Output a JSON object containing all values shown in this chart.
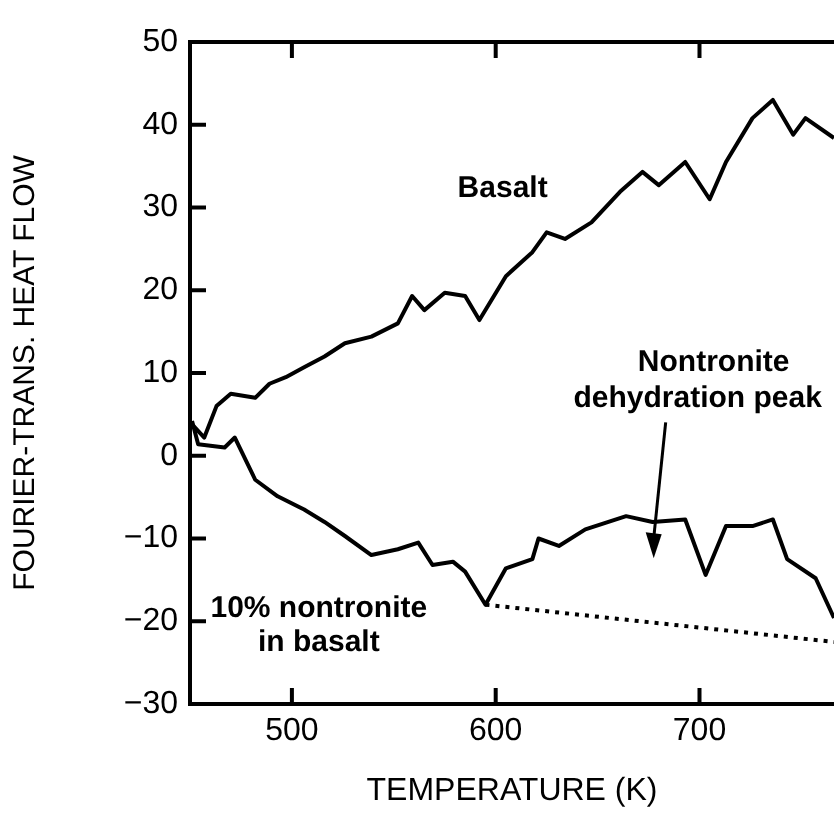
{
  "chart_data": {
    "type": "line",
    "xlabel": "TEMPERATURE (K)",
    "ylabel": "FOURIER-TRANS. HEAT FLOW",
    "xlim": [
      450,
      766
    ],
    "ylim": [
      -30,
      50
    ],
    "xticks": [
      500,
      600,
      700
    ],
    "yticks": [
      -30,
      -20,
      -10,
      0,
      10,
      20,
      30,
      40,
      50
    ],
    "grid": false,
    "legend": false,
    "marker": "none",
    "annotations": [
      "Nontronite dehydration peak"
    ],
    "series": [
      {
        "name": "Basalt",
        "color": "#000000",
        "line_style": "solid",
        "x": [
          451,
          457,
          463,
          470,
          482,
          489,
          497,
          506,
          516,
          526,
          539,
          552,
          559,
          565,
          575,
          585,
          592,
          605,
          618,
          625,
          634,
          647,
          661,
          672,
          680,
          693,
          705,
          713,
          726,
          736,
          746,
          752,
          766
        ],
        "values": [
          3.8,
          2.2,
          6,
          7.5,
          7,
          8.7,
          9.5,
          10.7,
          12,
          13.6,
          14.4,
          16,
          19.3,
          17.6,
          19.7,
          19.3,
          16.4,
          21.7,
          24.6,
          27,
          26.2,
          28.2,
          31.9,
          34.3,
          32.7,
          35.5,
          31,
          35.5,
          40.8,
          43,
          38.8,
          40.8,
          38.4
        ]
      },
      {
        "name": "10% nontronite in basalt",
        "color": "#000000",
        "line_style": "solid",
        "x": [
          451,
          454,
          467,
          472,
          482,
          493,
          506,
          516,
          526,
          539,
          552,
          562,
          569,
          579,
          585,
          595,
          605,
          618,
          621,
          631,
          644,
          664,
          677,
          693,
          703,
          713,
          726,
          736,
          743,
          757,
          766
        ],
        "values": [
          4.2,
          1.4,
          1,
          2.2,
          -2.9,
          -4.9,
          -6.5,
          -8,
          -9.7,
          -12,
          -11.3,
          -10.5,
          -13.2,
          -12.8,
          -14,
          -18,
          -13.6,
          -12.5,
          -10,
          -10.9,
          -8.9,
          -7.3,
          -8,
          -7.7,
          -14.4,
          -8.5,
          -8.5,
          -7.7,
          -12.5,
          -14.8,
          -19.6
        ]
      },
      {
        "color": "#000000",
        "line_style": "dotted",
        "x": [
          595,
          766
        ],
        "values": [
          -18,
          -22.5
        ]
      }
    ]
  }
}
